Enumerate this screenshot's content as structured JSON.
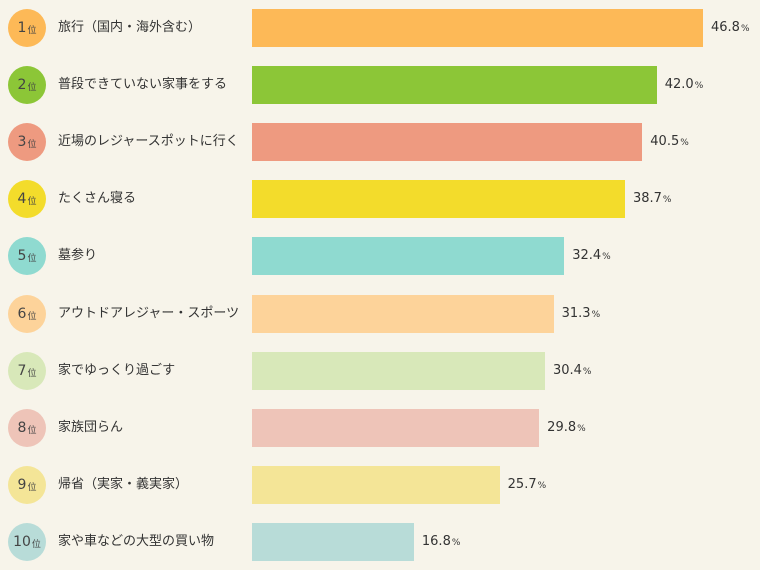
{
  "chart_data": {
    "type": "bar",
    "orientation": "horizontal",
    "title": "",
    "xlabel": "",
    "ylabel": "",
    "xlim": [
      0,
      46.8
    ],
    "unit": "%",
    "rank_suffix": "位",
    "items": [
      {
        "rank": "1",
        "category": "旅行（国内・海外含む）",
        "value": 46.8,
        "value_label": "46.8",
        "bar_color": "#fdb957",
        "circle_color": "#fdb957"
      },
      {
        "rank": "2",
        "category": "普段できていない家事をする",
        "value": 42.0,
        "value_label": "42.0",
        "bar_color": "#8cc637",
        "circle_color": "#8cc637"
      },
      {
        "rank": "3",
        "category": "近場のレジャースポットに行く",
        "value": 40.5,
        "value_label": "40.5",
        "bar_color": "#ee9a80",
        "circle_color": "#ee9a80"
      },
      {
        "rank": "4",
        "category": "たくさん寝る",
        "value": 38.7,
        "value_label": "38.7",
        "bar_color": "#f3dc2b",
        "circle_color": "#f3dc2b"
      },
      {
        "rank": "5",
        "category": "墓参り",
        "value": 32.4,
        "value_label": "32.4",
        "bar_color": "#8fdad0",
        "circle_color": "#8fdad0"
      },
      {
        "rank": "6",
        "category": "アウトドアレジャー・スポーツ",
        "value": 31.3,
        "value_label": "31.3",
        "bar_color": "#fdd39a",
        "circle_color": "#fdd39a"
      },
      {
        "rank": "7",
        "category": "家でゆっくり過ごす",
        "value": 30.4,
        "value_label": "30.4",
        "bar_color": "#d8e8b9",
        "circle_color": "#d8e8b9"
      },
      {
        "rank": "8",
        "category": "家族団らん",
        "value": 29.8,
        "value_label": "29.8",
        "bar_color": "#eec4b8",
        "circle_color": "#eec4b8"
      },
      {
        "rank": "9",
        "category": "帰省（実家・義実家）",
        "value": 25.7,
        "value_label": "25.7",
        "bar_color": "#f4e597",
        "circle_color": "#f4e597"
      },
      {
        "rank": "10",
        "category": "家や車などの大型の買い物",
        "value": 16.8,
        "value_label": "16.8",
        "bar_color": "#b8dcd8",
        "circle_color": "#b8dcd8"
      }
    ]
  }
}
